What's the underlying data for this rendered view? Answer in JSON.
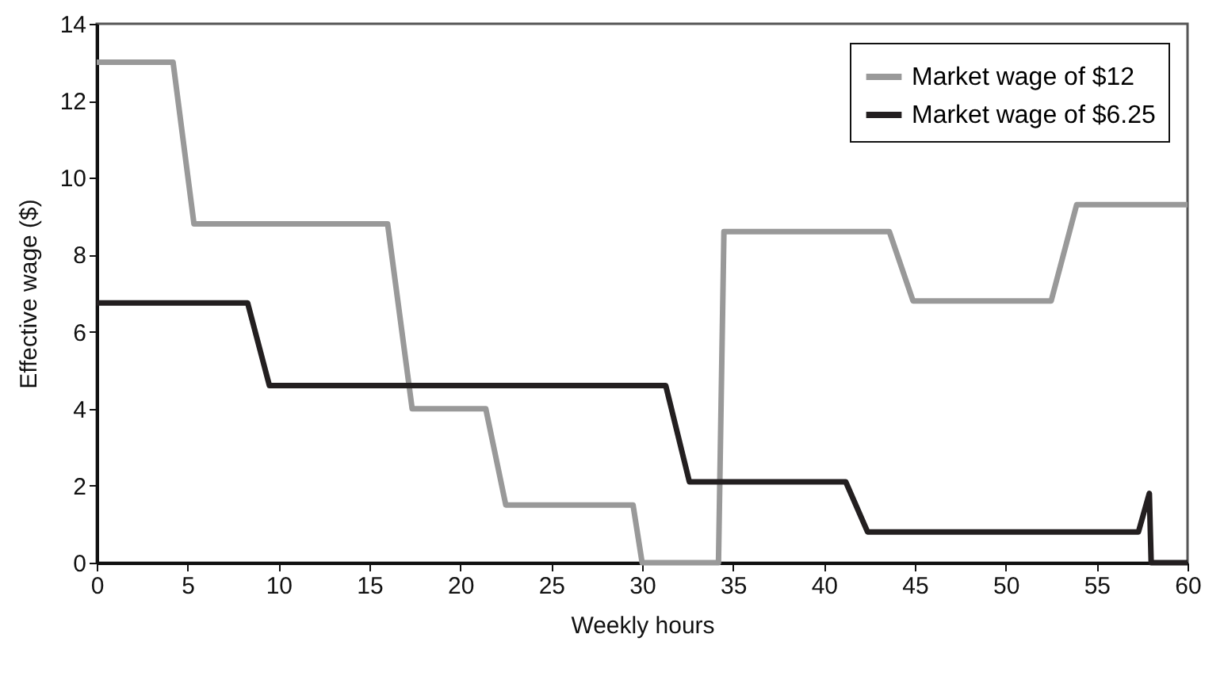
{
  "chart_data": {
    "type": "line",
    "xlabel": "Weekly hours",
    "ylabel": "Effective wage ($)",
    "xlim": [
      0,
      60
    ],
    "xticks": [
      0,
      5,
      10,
      15,
      20,
      25,
      30,
      35,
      40,
      45,
      50,
      55,
      60
    ],
    "ylim": [
      0,
      14
    ],
    "yticks": [
      0,
      2,
      4,
      6,
      8,
      10,
      12,
      14
    ],
    "grid": false,
    "legend": "top right",
    "marker": "none",
    "line_style": "solid",
    "series": [
      {
        "name": "Market wage of $12",
        "color": "#999999",
        "x": [
          0,
          4.2,
          5.35,
          16,
          17.35,
          21.4,
          22.5,
          29.5,
          30,
          34.2,
          34.5,
          43.6,
          44.9,
          52.5,
          53.9,
          60
        ],
        "values": [
          13,
          13,
          8.8,
          8.8,
          4,
          4,
          1.5,
          1.5,
          0,
          0,
          8.6,
          8.6,
          6.8,
          6.8,
          9.3,
          9.3
        ]
      },
      {
        "name": "Market wage of $6.25",
        "color": "#231f20",
        "x": [
          0,
          8.3,
          9.5,
          31.3,
          32.6,
          41.2,
          42.4,
          57.3,
          57.9,
          58,
          60
        ],
        "values": [
          6.75,
          6.75,
          4.6,
          4.6,
          2.1,
          2.1,
          0.8,
          0.8,
          1.8,
          0,
          0
        ]
      }
    ]
  }
}
